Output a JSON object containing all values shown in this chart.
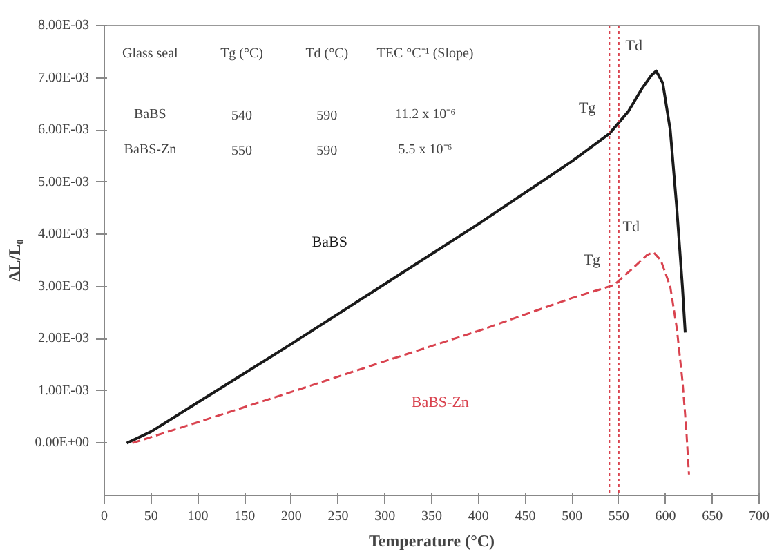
{
  "chart_data": {
    "type": "line",
    "xlabel": "Temperature (°C)",
    "ylabel": "ΔL/L₀",
    "xlim": [
      0,
      700
    ],
    "ylim": [
      -0.001,
      0.008
    ],
    "xticks": [
      0,
      50,
      100,
      150,
      200,
      250,
      300,
      350,
      400,
      450,
      500,
      550,
      600,
      650,
      700
    ],
    "yticks": [
      {
        "value": 0,
        "label": "0.00E+00"
      },
      {
        "value": 0.001,
        "label": "1.00E-03"
      },
      {
        "value": 0.002,
        "label": "2.00E-03"
      },
      {
        "value": 0.003,
        "label": "3.00E-03"
      },
      {
        "value": 0.004,
        "label": "4.00E-03"
      },
      {
        "value": 0.005,
        "label": "5.00E-03"
      },
      {
        "value": 0.006,
        "label": "6.00E-03"
      },
      {
        "value": 0.007,
        "label": "7.00E-03"
      },
      {
        "value": 0.008,
        "label": "8.00E-03"
      }
    ],
    "grid": false,
    "series": [
      {
        "name": "BaBS",
        "color": "#1a1a1a",
        "line_style": "solid",
        "x": [
          24,
          50,
          100,
          200,
          300,
          400,
          500,
          540,
          560,
          575,
          585,
          590,
          597,
          605,
          612,
          618,
          621
        ],
        "values": [
          0,
          0.00022,
          0.00078,
          0.0019,
          0.00305,
          0.0042,
          0.0054,
          0.00593,
          0.00635,
          0.0068,
          0.00705,
          0.00713,
          0.0069,
          0.006,
          0.0045,
          0.003,
          0.00212
        ]
      },
      {
        "name": "BaBS-Zn",
        "color": "#d9434f",
        "line_style": "dashed",
        "x": [
          30,
          100,
          200,
          300,
          400,
          500,
          545,
          565,
          580,
          587,
          595,
          605,
          612,
          618,
          622,
          625
        ],
        "values": [
          0,
          0.0004,
          0.00098,
          0.00157,
          0.00215,
          0.00278,
          0.00303,
          0.00335,
          0.0036,
          0.00366,
          0.0035,
          0.003,
          0.0022,
          0.0012,
          0.0003,
          -0.0006
        ]
      }
    ],
    "ref_lines": [
      {
        "axis": "x",
        "value": 540,
        "color": "#d9434f",
        "line_style": "dotted"
      },
      {
        "axis": "x",
        "value": 550,
        "color": "#d9434f",
        "line_style": "dotted"
      }
    ],
    "annotations": [
      {
        "text": "Tg",
        "x": 540,
        "y": 0.00593
      },
      {
        "text": "Td",
        "x": 590,
        "y": 0.00713
      },
      {
        "text": "Tg",
        "x": 545,
        "y": 0.00303
      },
      {
        "text": "Td",
        "x": 587,
        "y": 0.00366
      },
      "Glass seal",
      "Tg (°C)",
      "Td (°C)",
      "TEC °C⁻¹ (Slope)",
      "BaBS",
      "540",
      "590",
      "11.2 x 10⁻⁶",
      "BaBS-Zn",
      "550",
      "590",
      "5.5 x 10⁻⁶"
    ]
  }
}
